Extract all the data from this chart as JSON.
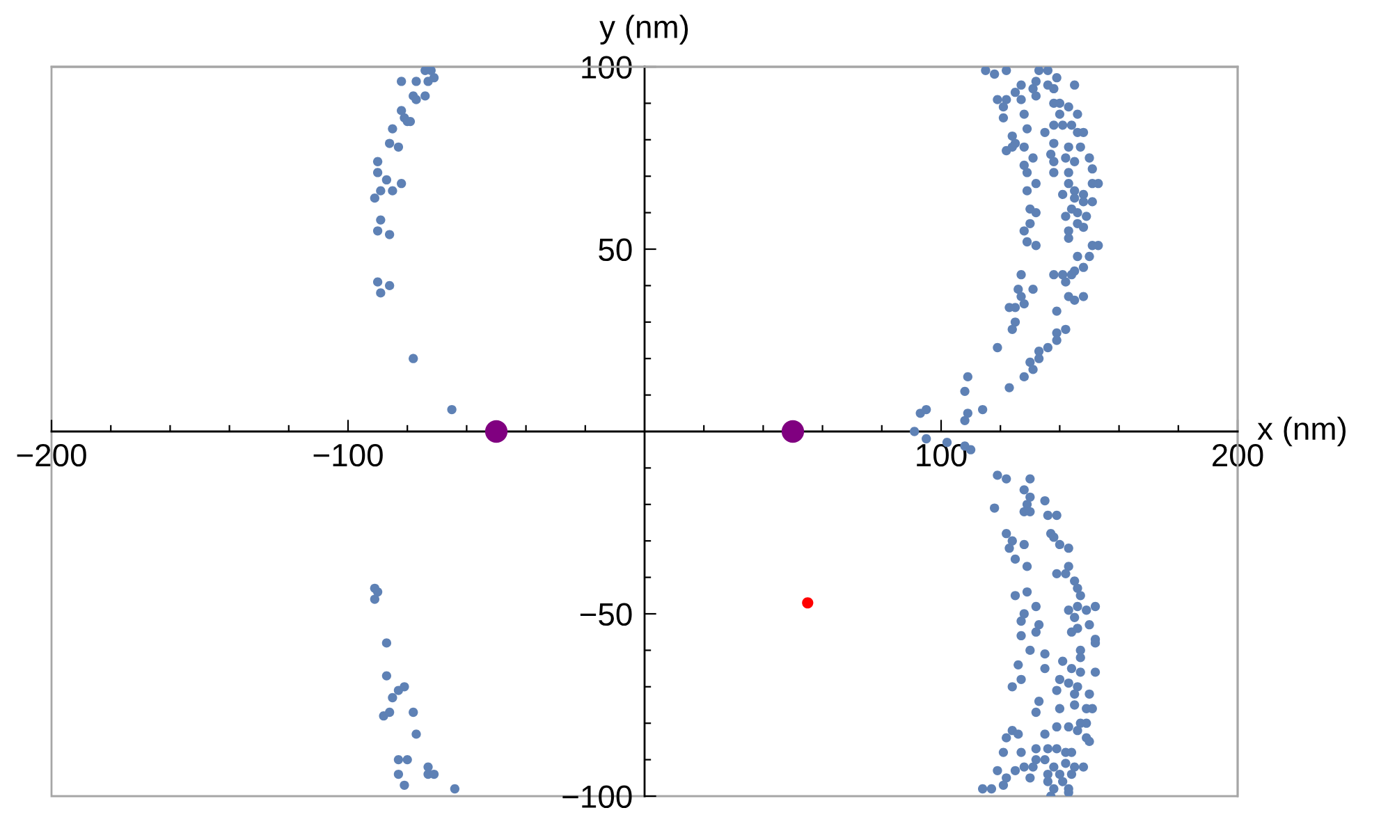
{
  "chart_data": {
    "type": "scatter",
    "xlabel": "x (nm)",
    "ylabel": "y (nm)",
    "xlim": [
      -200,
      200
    ],
    "ylim": [
      -100,
      100
    ],
    "xticks": [
      {
        "value": -200,
        "label": "−200"
      },
      {
        "value": -180,
        "label": null
      },
      {
        "value": -160,
        "label": null
      },
      {
        "value": -140,
        "label": null
      },
      {
        "value": -120,
        "label": null
      },
      {
        "value": -100,
        "label": "−100"
      },
      {
        "value": -80,
        "label": null
      },
      {
        "value": -60,
        "label": null
      },
      {
        "value": -40,
        "label": null
      },
      {
        "value": -20,
        "label": null
      },
      {
        "value": 20,
        "label": null
      },
      {
        "value": 40,
        "label": null
      },
      {
        "value": 60,
        "label": null
      },
      {
        "value": 80,
        "label": null
      },
      100,
      {
        "value": 120,
        "label": null
      },
      {
        "value": 140,
        "label": null
      },
      {
        "value": 160,
        "label": null
      },
      {
        "value": 180,
        "label": null
      },
      200
    ],
    "yticks": [
      {
        "value": -100,
        "label": "−100"
      },
      {
        "value": -90,
        "label": null
      },
      {
        "value": -80,
        "label": null
      },
      {
        "value": -70,
        "label": null
      },
      {
        "value": -60,
        "label": null
      },
      {
        "value": -50,
        "label": "−50"
      },
      {
        "value": -40,
        "label": null
      },
      {
        "value": -30,
        "label": null
      },
      {
        "value": -20,
        "label": null
      },
      {
        "value": -10,
        "label": null
      },
      {
        "value": 10,
        "label": null
      },
      {
        "value": 20,
        "label": null
      },
      {
        "value": 30,
        "label": null
      },
      {
        "value": 40,
        "label": null
      },
      50,
      {
        "value": 60,
        "label": null
      },
      {
        "value": 70,
        "label": null
      },
      {
        "value": 80,
        "label": null
      },
      {
        "value": 90,
        "label": null
      },
      100
    ],
    "marker": "circle",
    "series": [
      {
        "color": "#5e81b5",
        "x": [
          -74,
          -72,
          -82,
          -77,
          -73,
          -71,
          -78,
          -77,
          -74,
          -82,
          -81,
          -80,
          -79,
          -85,
          -86,
          -83,
          -90,
          -90,
          -87,
          -89,
          -85,
          -82,
          -91,
          -89,
          -90,
          -86,
          -90,
          -86,
          -89,
          -78,
          -65,
          -91,
          -90,
          -91,
          -87,
          -87,
          -83,
          -81,
          -85,
          -88,
          -86,
          -78,
          -77,
          -83,
          -80,
          -83,
          -73,
          -73,
          -71,
          -81,
          -64,
          115,
          118,
          122,
          133,
          136,
          139,
          145,
          127,
          131,
          132,
          136,
          138,
          125,
          132,
          119,
          122,
          127,
          121,
          121,
          128,
          138,
          140,
          143,
          140,
          146,
          129,
          138,
          141,
          144,
          135,
          146,
          148,
          124,
          125,
          124,
          122,
          128,
          138,
          143,
          147,
          131,
          137,
          142,
          128,
          138,
          145,
          150,
          151,
          129,
          138,
          143,
          132,
          143,
          151,
          153,
          129,
          141,
          145,
          148,
          151,
          148,
          145,
          130,
          132,
          144,
          146,
          142,
          146,
          149,
          130,
          143,
          148,
          128,
          129,
          132,
          143,
          151,
          153,
          146,
          150,
          148,
          145,
          138,
          141,
          144,
          142,
          143,
          145,
          148,
          127,
          126,
          131,
          127,
          128,
          123,
          125,
          125,
          124,
          139,
          142,
          139,
          139,
          136,
          133,
          133,
          130,
          131,
          128,
          123,
          119,
          109,
          108,
          109,
          108,
          114,
          93,
          95,
          91,
          95,
          102,
          108,
          110,
          119,
          122,
          130,
          128,
          130,
          129,
          135,
          118,
          128,
          130,
          136,
          139,
          122,
          137,
          138,
          124,
          123,
          128,
          140,
          143,
          125,
          129,
          143,
          139,
          142,
          145,
          146,
          147,
          125,
          129,
          132,
          128,
          127,
          143,
          146,
          149,
          152,
          145,
          150,
          133,
          132,
          127,
          144,
          146,
          152,
          147,
          152,
          130,
          135,
          141,
          147,
          126,
          135,
          144,
          147,
          152,
          127,
          124,
          140,
          143,
          146,
          139,
          145,
          150,
          133,
          132,
          140,
          145,
          149,
          151,
          147,
          149,
          124,
          122,
          126,
          139,
          143,
          146,
          135,
          149,
          150,
          121,
          127,
          132,
          136,
          139,
          142,
          144,
          132,
          135,
          138,
          142,
          145,
          148,
          119,
          125,
          128,
          131,
          136,
          140,
          144,
          122,
          130,
          136,
          141,
          114,
          117,
          121,
          138,
          143,
          137,
          143
        ],
        "values": [
          99,
          99,
          96,
          96,
          96,
          97,
          92,
          91,
          92,
          88,
          86,
          85,
          85,
          83,
          79,
          78,
          74,
          71,
          69,
          66,
          66,
          68,
          64,
          58,
          55,
          54,
          41,
          40,
          38,
          20,
          6,
          -43,
          -44,
          -46,
          -58,
          -67,
          -71,
          -70,
          -73,
          -78,
          -77,
          -77,
          -83,
          -90,
          -90,
          -94,
          -92,
          -94,
          -94,
          -97,
          -98,
          99,
          98,
          99,
          99,
          99,
          97,
          95,
          95,
          94,
          96,
          95,
          94,
          93,
          92,
          91,
          91,
          91,
          86,
          89,
          87,
          90,
          90,
          89,
          87,
          87,
          83,
          84,
          84,
          84,
          82,
          82,
          82,
          81,
          79,
          78,
          77,
          78,
          79,
          78,
          78,
          75,
          76,
          75,
          73,
          74,
          74,
          75,
          72,
          71,
          71,
          71,
          68,
          68,
          68,
          68,
          66,
          65,
          66,
          65,
          63,
          63,
          64,
          61,
          60,
          61,
          60,
          59,
          57,
          59,
          57,
          55,
          56,
          55,
          52,
          51,
          53,
          51,
          51,
          48,
          48,
          45,
          44,
          43,
          43,
          43,
          41,
          37,
          36,
          37,
          43,
          39,
          39,
          37,
          35,
          34,
          34,
          30,
          28,
          33,
          28,
          27,
          25,
          23,
          22,
          20,
          19,
          17,
          15,
          12,
          23,
          15,
          11,
          5,
          3,
          6,
          5,
          6,
          0,
          -2,
          -3,
          -4,
          -5,
          -12,
          -13,
          -13,
          -16,
          -18,
          -20,
          -19,
          -21,
          -22,
          -22,
          -23,
          -23,
          -28,
          -28,
          -29,
          -30,
          -32,
          -31,
          -31,
          -32,
          -35,
          -37,
          -37,
          -39,
          -39,
          -41,
          -43,
          -45,
          -45,
          -44,
          -48,
          -50,
          -52,
          -49,
          -48,
          -49,
          -48,
          -51,
          -53,
          -53,
          -55,
          -56,
          -55,
          -54,
          -57,
          -60,
          -58,
          -60,
          -61,
          -63,
          -62,
          -64,
          -65,
          -65,
          -66,
          -66,
          -68,
          -70,
          -68,
          -69,
          -70,
          -71,
          -72,
          -72,
          -74,
          -77,
          -76,
          -75,
          -76,
          -76,
          -80,
          -80,
          -82,
          -84,
          -83,
          -81,
          -81,
          -82,
          -83,
          -84,
          -85,
          -88,
          -88,
          -87,
          -87,
          -87,
          -88,
          -88,
          -90,
          -90,
          -92,
          -91,
          -92,
          -92,
          -93,
          -93,
          -92,
          -92,
          -94,
          -94,
          -94,
          -95,
          -95,
          -96,
          -96,
          -98,
          -98,
          -97,
          -98,
          -98,
          -100,
          -99
        ],
        "sizes": [
          0.17,
          0.17,
          0.17,
          0.17,
          0.17,
          0.17,
          0.17,
          0.17,
          0.17,
          0.17,
          0.17,
          0.17,
          0.17,
          0.17,
          0.17,
          0.17,
          0.17,
          0.17,
          0.17,
          0.17,
          0.17,
          0.17,
          0.17,
          0.17,
          0.17,
          0.17,
          0.17,
          0.17,
          0.17,
          0.17,
          0.17,
          0.17,
          0.17,
          0.17,
          0.17,
          0.17,
          0.17,
          0.17,
          0.17,
          0.17,
          0.17,
          0.17,
          0.17,
          0.17,
          0.17,
          0.17,
          0.17,
          0.17,
          0.17,
          0.17,
          0.17,
          0.17,
          0.17,
          0.17,
          0.17,
          0.17,
          0.17,
          0.17,
          0.17,
          0.17,
          0.17,
          0.17,
          0.17,
          0.17,
          0.17,
          0.17,
          0.17,
          0.17,
          0.17,
          0.17,
          0.17,
          0.17,
          0.17,
          0.17,
          0.17,
          0.17,
          0.17,
          0.17,
          0.17,
          0.17,
          0.17,
          0.17,
          0.17,
          0.17,
          0.17,
          0.17,
          0.17,
          0.17,
          0.17,
          0.17,
          0.17,
          0.17,
          0.17,
          0.17,
          0.17,
          0.17,
          0.17,
          0.17,
          0.17,
          0.17,
          0.17,
          0.17,
          0.17,
          0.17,
          0.17,
          0.17,
          0.17,
          0.17,
          0.17,
          0.17,
          0.17,
          0.17,
          0.17,
          0.17,
          0.17,
          0.17,
          0.17,
          0.17,
          0.17,
          0.17,
          0.17,
          0.17,
          0.17,
          0.17,
          0.17,
          0.17,
          0.17,
          0.17,
          0.17,
          0.17,
          0.17,
          0.17,
          0.17,
          0.17,
          0.17,
          0.17,
          0.17,
          0.17,
          0.17,
          0.17,
          0.17,
          0.17,
          0.17,
          0.17,
          0.17,
          0.17,
          0.17,
          0.17,
          0.17,
          0.17,
          0.17,
          0.17,
          0.17,
          0.17,
          0.17,
          0.17,
          0.17,
          0.17,
          0.17,
          0.17,
          0.17,
          0.17,
          0.17,
          0.17,
          0.17,
          0.17,
          0.17,
          0.17,
          0.17,
          0.17,
          0.17,
          0.17,
          0.17,
          0.17,
          0.17,
          0.17,
          0.17,
          0.17,
          0.17,
          0.17,
          0.17,
          0.17,
          0.17,
          0.17,
          0.17,
          0.17,
          0.17,
          0.17,
          0.17,
          0.17,
          0.17,
          0.17,
          0.17,
          0.17,
          0.17,
          0.17,
          0.17,
          0.17,
          0.17,
          0.17,
          0.17,
          0.17,
          0.17,
          0.17,
          0.17,
          0.17,
          0.17,
          0.17,
          0.17,
          0.17,
          0.17,
          0.17,
          0.17,
          0.17,
          0.17,
          0.17,
          0.17,
          0.17,
          0.17,
          0.17,
          0.17,
          0.17,
          0.17,
          0.17,
          0.17,
          0.17,
          0.17,
          0.17,
          0.17,
          0.17,
          0.17,
          0.17,
          0.17,
          0.17,
          0.17,
          0.17,
          0.17,
          0.17,
          0.17,
          0.17,
          0.17,
          0.17,
          0.17,
          0.17,
          0.17,
          0.17,
          0.17,
          0.17,
          0.17,
          0.17,
          0.17,
          0.17,
          0.17,
          0.17,
          0.17,
          0.17,
          0.17,
          0.17,
          0.17,
          0.17,
          0.17,
          0.17,
          0.17,
          0.17,
          0.17,
          0.17,
          0.17,
          0.17,
          0.17,
          0.17,
          0.17,
          0.17,
          0.17,
          0.17,
          0.17,
          0.17,
          0.17,
          0.17,
          0.17,
          0.17,
          0.17,
          0.17,
          0.17,
          0.17,
          0.17
        ]
      },
      {
        "color": "#800080",
        "x": [
          -50,
          50
        ],
        "values": [
          0,
          0
        ],
        "sizes": [
          1,
          1
        ]
      },
      {
        "color": "#ff0000",
        "x": [
          55
        ],
        "values": [
          -47
        ],
        "sizes": [
          0.25
        ]
      }
    ]
  }
}
